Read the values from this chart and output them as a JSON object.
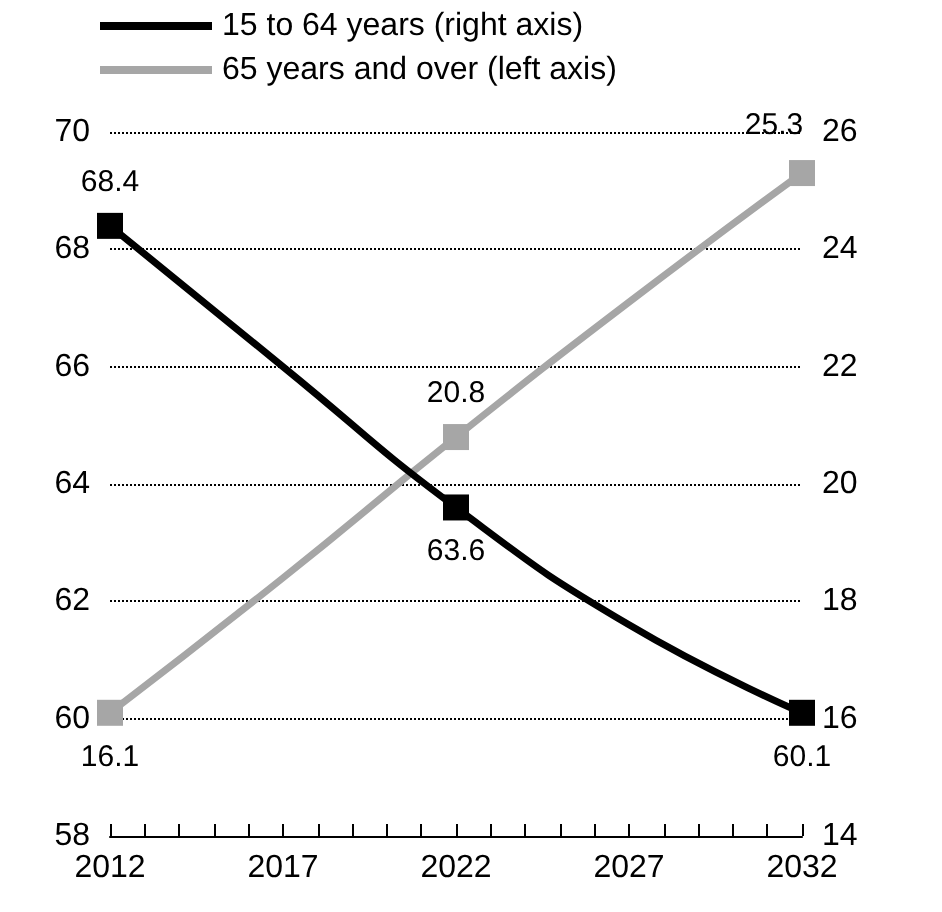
{
  "chart_data": {
    "type": "line",
    "x": [
      2012,
      2017,
      2022,
      2027,
      2032
    ],
    "series": [
      {
        "name": "15 to 64 years (right axis)",
        "color": "#000000",
        "values": [
          68.4,
          66.0,
          63.6,
          61.6,
          60.1
        ],
        "value_labels": [
          "68.4",
          null,
          "63.6",
          null,
          "60.1"
        ]
      },
      {
        "name": "65 years and over (left axis)",
        "color": "#a6a6a6",
        "axis": "y2",
        "values": [
          16.1,
          18.4,
          20.8,
          23.1,
          25.3
        ],
        "value_labels": [
          "16.1",
          null,
          "20.8",
          null,
          "25.3"
        ]
      }
    ],
    "xlim": [
      2012,
      2032
    ],
    "xticks": [
      2012,
      2017,
      2022,
      2027,
      2032
    ],
    "ylim": [
      58,
      70
    ],
    "yticks": [
      58,
      60,
      62,
      64,
      66,
      68,
      70
    ],
    "y2lim": [
      14,
      26
    ],
    "y2ticks": [
      14,
      16,
      18,
      20,
      22,
      24,
      26
    ],
    "grid": "y",
    "legend": "top left",
    "marker": "square",
    "line_style": "solid"
  }
}
